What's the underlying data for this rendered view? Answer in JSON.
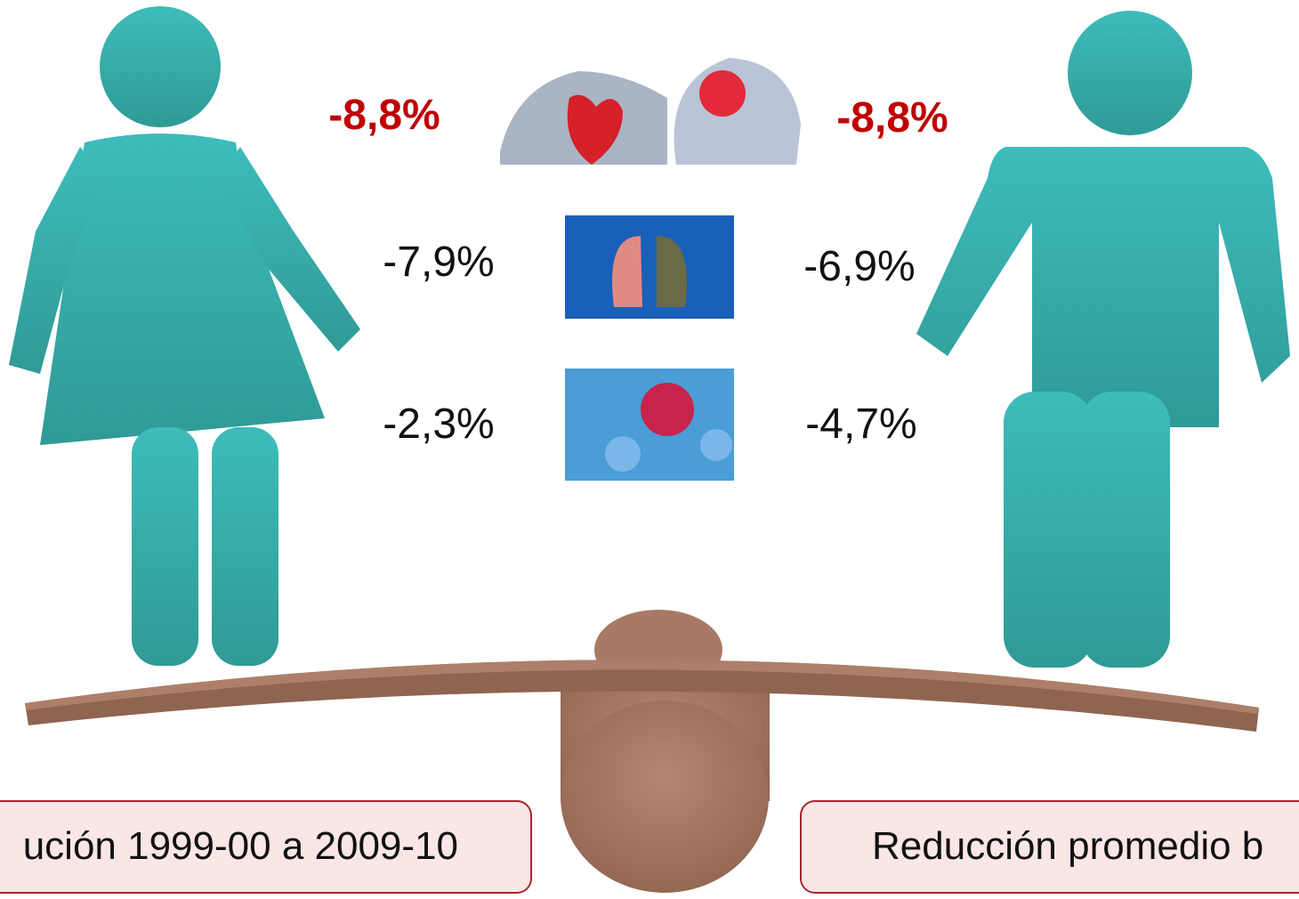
{
  "women": {
    "cardio": "-8,8%",
    "respiratory": "-7,9%",
    "cancer": "-2,3%"
  },
  "men": {
    "cardio": "-8,8%",
    "respiratory": "-6,9%",
    "cancer": "-4,7%"
  },
  "captions": {
    "left": "ución 1999-00 a 2009-10",
    "right": "Reducción promedio b"
  }
}
